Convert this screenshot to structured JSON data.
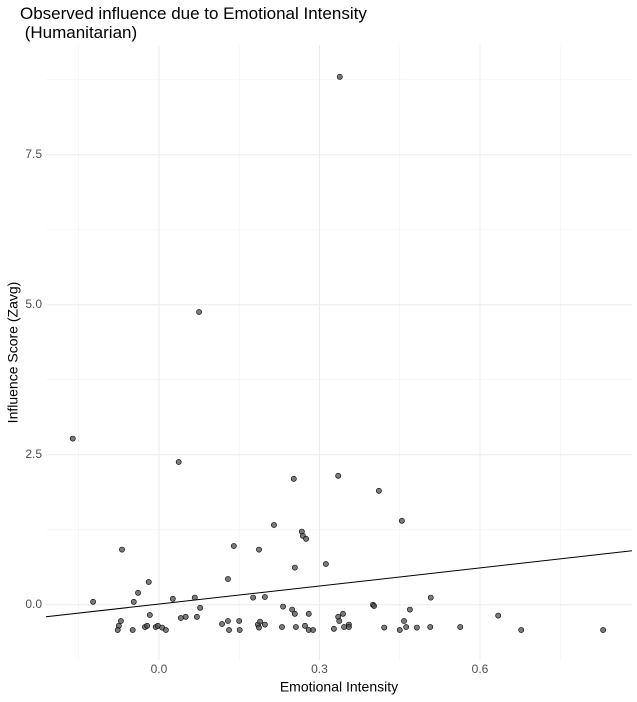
{
  "chart_data": {
    "type": "scatter",
    "title": "Observed influence due to Emotional Intensity\n (Humanitarian)",
    "x_label": "Emotional Intensity",
    "y_label": "Influence Score (Zavg)",
    "xlim": [
      -0.211,
      0.884
    ],
    "ylim": [
      -0.92,
      9.33
    ],
    "xticks": [
      {
        "value": 0,
        "label": "0.0"
      },
      0.3,
      0.6
    ],
    "yticks": [
      {
        "value": 0,
        "label": "0.0"
      },
      2.5,
      {
        "value": 5,
        "label": "5.0"
      },
      7.5
    ],
    "x_minor_ticks": [
      -0.15,
      0.15,
      0.45,
      0.75
    ],
    "y_minor_ticks": [
      1.25,
      3.75,
      6.25,
      8.75
    ],
    "grid": true,
    "color": "#4d4d4d",
    "x": [
      -0.161,
      -0.123,
      -0.069,
      -0.071,
      -0.075,
      -0.077,
      -0.049,
      -0.047,
      -0.039,
      -0.019,
      -0.026,
      -0.022,
      -0.017,
      -0.006,
      -0.002,
      0.006,
      0.013,
      0.026,
      0.037,
      0.041,
      0.05,
      0.067,
      0.075,
      0.077,
      0.071,
      0.118,
      0.129,
      0.129,
      0.131,
      0.14,
      0.15,
      0.151,
      0.176,
      0.185,
      0.187,
      0.187,
      0.189,
      0.198,
      0.198,
      0.215,
      0.23,
      0.232,
      0.249,
      0.252,
      0.254,
      0.254,
      0.256,
      0.267,
      0.269,
      0.275,
      0.273,
      0.28,
      0.28,
      0.288,
      0.312,
      0.327,
      0.335,
      0.338,
      0.335,
      0.337,
      0.344,
      0.346,
      0.355,
      0.355,
      0.4,
      0.402,
      0.411,
      0.421,
      0.45,
      0.454,
      0.458,
      0.462,
      0.469,
      0.482,
      0.507,
      0.508,
      0.563,
      0.634,
      0.677,
      0.83
    ],
    "values": [
      2.77,
      0.05,
      0.92,
      -0.27,
      -0.35,
      -0.42,
      -0.42,
      0.05,
      0.2,
      0.38,
      -0.37,
      -0.35,
      -0.17,
      -0.37,
      -0.35,
      -0.38,
      -0.42,
      0.1,
      2.38,
      -0.22,
      -0.2,
      0.12,
      4.88,
      -0.05,
      -0.2,
      -0.32,
      0.43,
      -0.27,
      -0.42,
      0.98,
      -0.27,
      -0.42,
      0.12,
      -0.33,
      0.92,
      -0.38,
      -0.28,
      0.13,
      -0.33,
      1.33,
      -0.37,
      -0.03,
      -0.08,
      2.1,
      0.62,
      -0.15,
      -0.37,
      1.22,
      1.15,
      1.1,
      -0.35,
      -0.15,
      -0.42,
      -0.42,
      0.68,
      -0.4,
      2.15,
      8.8,
      -0.2,
      -0.27,
      -0.15,
      -0.37,
      -0.33,
      -0.37,
      0.0,
      -0.02,
      1.9,
      -0.38,
      -0.42,
      1.4,
      -0.27,
      -0.37,
      -0.08,
      -0.38,
      -0.37,
      0.12,
      -0.37,
      -0.18,
      -0.42,
      -0.42
    ],
    "trend_line": {
      "x": [
        -0.211,
        0.884
      ],
      "values": [
        -0.2,
        0.9
      ],
      "color": "#000000"
    }
  }
}
